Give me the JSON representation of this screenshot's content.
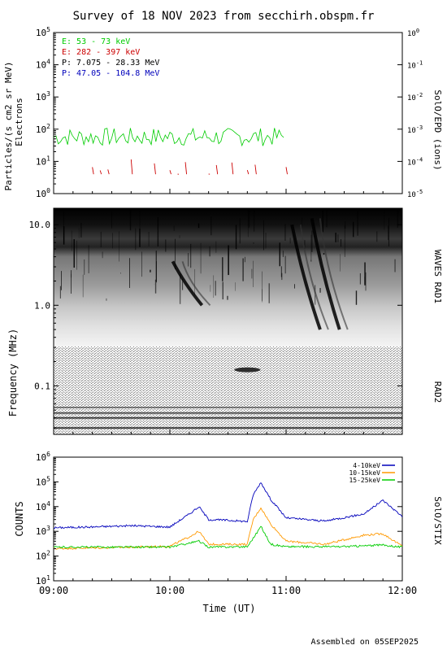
{
  "title": "Survey of 18 NOV 2023 from secchirh.obspm.fr",
  "footer": "Assembled on 05SEP2025",
  "colors": {
    "green": "#00cc00",
    "red": "#cc0000",
    "black": "#000000",
    "blue": "#0000bb",
    "orange": "#ff9900"
  },
  "chart_data": [
    {
      "type": "line",
      "id": "epd",
      "ylabel": "Particles/(s cm2 sr MeV)",
      "ylabel2": "Electrons",
      "right_label": "SolO/EPD (ions)",
      "yscale": "log",
      "ylim": [
        1,
        100000
      ],
      "y_ticks": [
        "10^0",
        "10^1",
        "10^2",
        "10^3",
        "10^4",
        "10^5"
      ],
      "y2lim": [
        1e-05,
        1
      ],
      "y2_ticks": [
        "10^-5",
        "10^-4",
        "10^-3",
        "10^-2",
        "10^-1",
        "10^0"
      ],
      "xlim": [
        "09:00",
        "12:00"
      ],
      "legend": [
        {
          "label": "E: 53 - 73 keV",
          "color": "#00cc00"
        },
        {
          "label": "E: 282 - 397 keV",
          "color": "#cc0000"
        },
        {
          "label": "P: 7.075 - 28.33 MeV",
          "color": "#000000"
        },
        {
          "label": "P: 47.05 - 104.8 MeV",
          "color": "#0000bb"
        }
      ],
      "series": [
        {
          "name": "E: 53 - 73 keV",
          "range": [
            30,
            110
          ],
          "t_start": "09:00",
          "t_end": "11:00"
        },
        {
          "name": "E: 282 - 397 keV",
          "range": [
            4,
            13
          ],
          "t_start": "09:00",
          "t_end": "11:00"
        }
      ]
    },
    {
      "type": "heatmap",
      "id": "waves",
      "ylabel": "Frequency (MHz)",
      "yscale": "log",
      "ylim": [
        0.025,
        16
      ],
      "y_ticks": [
        "0.1",
        "1.0",
        "10.0"
      ],
      "right_label_top": "WAVES RAD1",
      "right_label_bottom": "RAD2",
      "xlim": [
        "09:00",
        "12:00"
      ],
      "bursts": [
        {
          "time": "10:04",
          "f_start": 1.0,
          "f_end": 3.5
        },
        {
          "time": "10:40",
          "f_start": 0.1,
          "f_end": 0.25
        },
        {
          "time": "11:05",
          "f_start": 0.5,
          "f_end": 10.0
        },
        {
          "time": "11:15",
          "f_start": 0.5,
          "f_end": 12.0
        }
      ]
    },
    {
      "type": "line",
      "id": "stix",
      "ylabel": "COUNTS",
      "right_label": "SolO/STIX",
      "yscale": "log",
      "ylim": [
        10,
        1000000
      ],
      "y_ticks": [
        "10^1",
        "10^2",
        "10^3",
        "10^4",
        "10^5",
        "10^6"
      ],
      "xlabel": "Time (UT)",
      "x_ticks": [
        "09:00",
        "10:00",
        "11:00",
        "12:00"
      ],
      "legend": [
        {
          "label": "4-10keV",
          "color": "#0000bb"
        },
        {
          "label": "10-15keV",
          "color": "#ff9900"
        },
        {
          "label": "15-25keV",
          "color": "#00cc00"
        }
      ],
      "series": [
        {
          "name": "4-10keV",
          "x": [
            "09:00",
            "09:20",
            "09:40",
            "10:00",
            "10:10",
            "10:15",
            "10:20",
            "10:30",
            "10:40",
            "10:43",
            "10:47",
            "10:52",
            "11:00",
            "11:20",
            "11:40",
            "11:50",
            "12:00"
          ],
          "y": [
            1400,
            1500,
            1700,
            1500,
            5000,
            10000,
            3000,
            2800,
            2500,
            30000,
            95000,
            20000,
            3500,
            2600,
            5000,
            18000,
            4000
          ]
        },
        {
          "name": "10-15keV",
          "x": [
            "09:00",
            "09:30",
            "10:00",
            "10:10",
            "10:15",
            "10:20",
            "10:40",
            "10:43",
            "10:47",
            "10:52",
            "11:00",
            "11:20",
            "11:40",
            "11:50",
            "12:00"
          ],
          "y": [
            200,
            220,
            250,
            600,
            1000,
            300,
            300,
            3000,
            9000,
            2000,
            400,
            300,
            700,
            800,
            250
          ]
        },
        {
          "name": "15-25keV",
          "x": [
            "09:00",
            "09:30",
            "10:00",
            "10:15",
            "10:20",
            "10:40",
            "10:45",
            "10:47",
            "10:52",
            "11:00",
            "11:30",
            "11:50",
            "12:00"
          ],
          "y": [
            230,
            230,
            230,
            400,
            230,
            240,
            900,
            1600,
            300,
            240,
            240,
            280,
            230
          ]
        }
      ]
    }
  ]
}
